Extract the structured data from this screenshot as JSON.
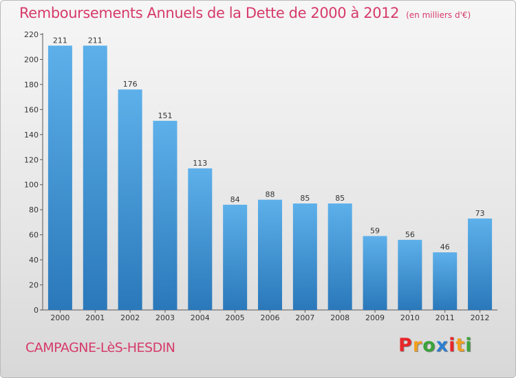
{
  "header": {
    "title": "Remboursements Annuels de la Dette de 2000 à 2012",
    "unit": "(en milliers d'€)"
  },
  "footer": {
    "city": "CAMPAGNE-LèS-HESDIN",
    "logo": "Proxiti"
  },
  "colors": {
    "accent": "#d63a6a",
    "bar_top": "#5db0ea",
    "bar_bottom": "#2a78ba",
    "logo_letters": [
      "#e8262a",
      "#f0a020",
      "#3aa33a",
      "#2b7fd0",
      "#e8262a",
      "#f0a020",
      "#3aa33a"
    ]
  },
  "chart_data": {
    "type": "bar",
    "title": "Remboursements Annuels de la Dette de 2000 à 2012",
    "xlabel": "",
    "ylabel": "",
    "categories": [
      "2000",
      "2001",
      "2002",
      "2003",
      "2004",
      "2005",
      "2006",
      "2007",
      "2008",
      "2009",
      "2010",
      "2011",
      "2012"
    ],
    "values": [
      211,
      211,
      176,
      151,
      113,
      84,
      88,
      85,
      85,
      59,
      56,
      46,
      73
    ],
    "ylim": [
      0,
      220
    ],
    "yticks": [
      0,
      20,
      40,
      60,
      80,
      100,
      120,
      140,
      160,
      180,
      200,
      220
    ],
    "grid": false,
    "legend": "none"
  }
}
